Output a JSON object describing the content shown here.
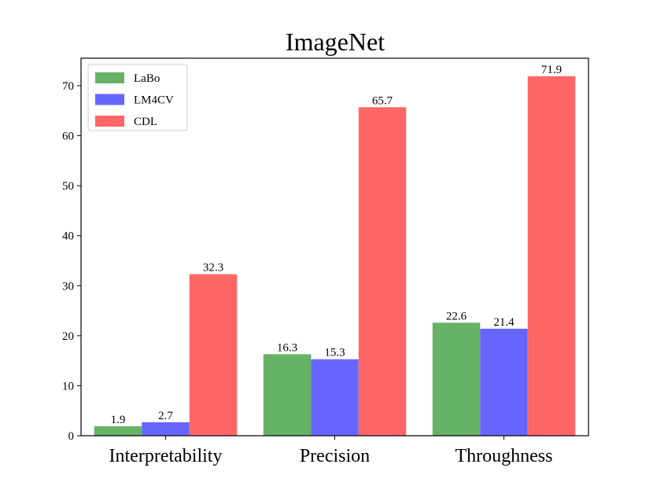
{
  "chart_data": {
    "type": "bar",
    "title": "ImageNet",
    "categories": [
      "Interpretability",
      "Precision",
      "Throughness"
    ],
    "series": [
      {
        "name": "LaBo",
        "color": "#66b266",
        "values": [
          1.9,
          16.3,
          22.6
        ]
      },
      {
        "name": "LM4CV",
        "color": "#6666ff",
        "values": [
          2.7,
          15.3,
          21.4
        ]
      },
      {
        "name": "CDL",
        "color": "#ff6666",
        "values": [
          32.3,
          65.7,
          71.9
        ]
      }
    ],
    "value_labels": [
      [
        "1.9",
        "16.3",
        "22.6"
      ],
      [
        "2.7",
        "15.3",
        "21.4"
      ],
      [
        "32.3",
        "65.7",
        "71.9"
      ]
    ],
    "y_ticks": [
      0,
      10,
      20,
      30,
      40,
      50,
      60,
      70
    ],
    "ylim": [
      0,
      75.5
    ],
    "xlabel": "",
    "ylabel": "",
    "grid": false,
    "legend_position": "top-left"
  }
}
